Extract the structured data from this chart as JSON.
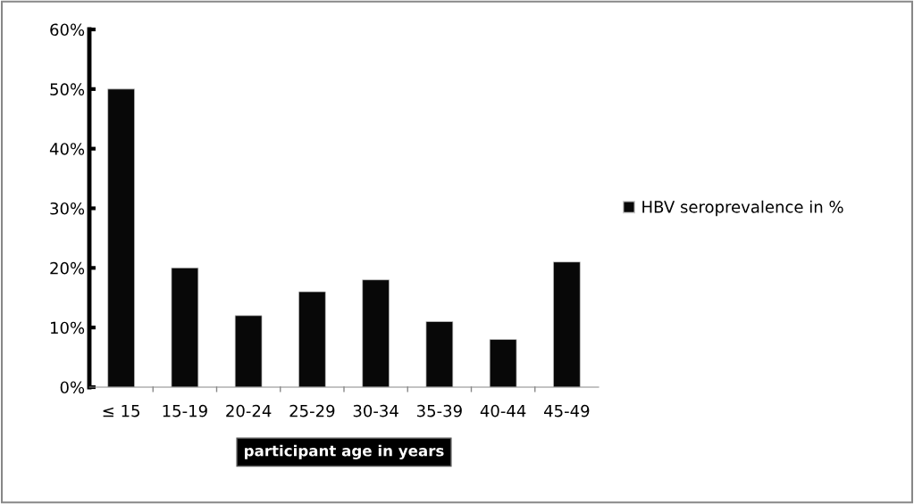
{
  "chart_data": {
    "type": "bar",
    "xlabel": "participant age in years",
    "categories": [
      "≤ 15",
      "15-19",
      "20-24",
      "25-29",
      "30-34",
      "35-39",
      "40-44",
      "45-49"
    ],
    "series": [
      {
        "name": "HBV seroprevalence in %",
        "color": "#080808",
        "values": [
          50,
          20,
          12,
          16,
          18,
          11,
          8,
          21
        ]
      }
    ],
    "ylim": [
      0,
      60
    ],
    "yticks": [
      {
        "value": 0,
        "label": "0%"
      },
      {
        "value": 10,
        "label": "10%"
      },
      {
        "value": 20,
        "label": "20%"
      },
      {
        "value": 30,
        "label": "30%"
      },
      {
        "value": 40,
        "label": "40%"
      },
      {
        "value": 50,
        "label": "50%"
      },
      {
        "value": 60,
        "label": "60%"
      }
    ],
    "grid": false,
    "legend": "right"
  }
}
